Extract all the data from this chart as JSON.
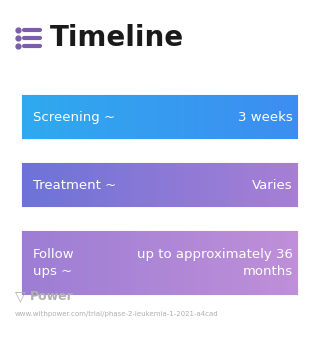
{
  "title": "Timeline",
  "background_color": "#ffffff",
  "title_color": "#1a1a1a",
  "title_fontsize": 20,
  "icon_color": "#7b5ea7",
  "rows": [
    {
      "left_text": "Screening ~",
      "right_text": "3 weeks",
      "color_left": "#2eaaef",
      "color_right": "#3d8cf0",
      "text_color": "#ffffff",
      "wrap_right": false
    },
    {
      "left_text": "Treatment ~",
      "right_text": "Varies",
      "color_left": "#6b72d8",
      "color_right": "#a87fd4",
      "text_color": "#ffffff",
      "wrap_right": false
    },
    {
      "left_text": "Follow\nups ~",
      "right_text": "up to approximately 36\nmonths",
      "color_left": "#9b7dd4",
      "color_right": "#c08fd8",
      "text_color": "#ffffff",
      "wrap_right": true
    }
  ],
  "footer_text": "Power",
  "footer_url": "www.withpower.com/trial/phase-2-leukemia-1-2021-a4cad",
  "footer_color": "#b0b0b0"
}
